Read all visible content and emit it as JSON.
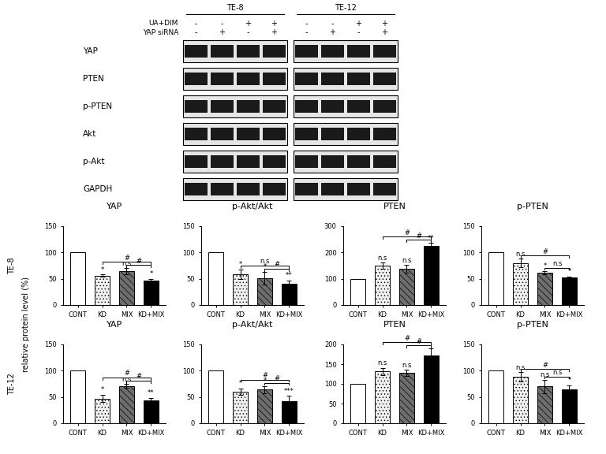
{
  "figure": {
    "y_label": "relative protein level (%)",
    "rows": [
      "TE-8",
      "TE-12"
    ]
  },
  "blot": {
    "columns": [
      "TE-8",
      "TE-12"
    ],
    "treatments": [
      {
        "label": "UA+DIM",
        "signs": [
          "-",
          "-",
          "+",
          "+"
        ]
      },
      {
        "label": "YAP siRNA",
        "signs": [
          "-",
          "+",
          "-",
          "+"
        ]
      }
    ],
    "proteins": [
      "YAP",
      "PTEN",
      "p-PTEN",
      "Akt",
      "p-Akt",
      "GAPDH"
    ]
  },
  "chart_data": [
    {
      "type": "bar",
      "title": "YAP",
      "group": "TE-8",
      "categories": [
        "CONT",
        "KD",
        "MIX",
        "KD+MIX"
      ],
      "values": [
        100,
        56,
        64,
        46
      ],
      "errors": [
        null,
        2,
        6,
        4
      ],
      "annotations": [
        null,
        "*",
        "n.s",
        "*"
      ],
      "comparisons": [
        {
          "from": "KD",
          "to": "KD+MIX",
          "label": "#"
        },
        {
          "from": "MIX",
          "to": "KD+MIX",
          "label": "#"
        }
      ],
      "colors": [
        "#ffffff",
        "#f0f0f0",
        "#6e6e6e",
        "#000000"
      ],
      "ylim": [
        0,
        150
      ],
      "yticks": [
        0,
        50,
        100,
        150
      ]
    },
    {
      "type": "bar",
      "title": "p-Akt/Akt",
      "group": "TE-8",
      "categories": [
        "CONT",
        "KD",
        "MIX",
        "KD+MIX"
      ],
      "values": [
        100,
        59,
        51,
        40
      ],
      "errors": [
        null,
        9,
        12,
        7
      ],
      "annotations": [
        null,
        "*",
        "*",
        "**"
      ],
      "comparisons": [
        {
          "from": "KD",
          "to": "KD+MIX",
          "label": "n.s"
        },
        {
          "from": "MIX",
          "to": "KD+MIX",
          "label": "#"
        }
      ],
      "colors": [
        "#ffffff",
        "#f0f0f0",
        "#6e6e6e",
        "#000000"
      ],
      "ylim": [
        0,
        150
      ],
      "yticks": [
        0,
        50,
        100,
        150
      ]
    },
    {
      "type": "bar",
      "title": "PTEN",
      "group": "TE-8",
      "categories": [
        "CONT",
        "KD",
        "MIX",
        "KD+MIX"
      ],
      "values": [
        100,
        150,
        138,
        225
      ],
      "errors": [
        null,
        12,
        14,
        12
      ],
      "annotations": [
        null,
        "n.s",
        "n.s",
        "**"
      ],
      "comparisons": [
        {
          "from": "KD",
          "to": "KD+MIX",
          "label": "#"
        },
        {
          "from": "MIX",
          "to": "KD+MIX",
          "label": "#"
        }
      ],
      "colors": [
        "#ffffff",
        "#f0f0f0",
        "#6e6e6e",
        "#000000"
      ],
      "ylim": [
        0,
        300
      ],
      "yticks": [
        0,
        100,
        200,
        300
      ]
    },
    {
      "type": "bar",
      "title": "p-PTEN",
      "group": "TE-8",
      "categories": [
        "CONT",
        "KD",
        "MIX",
        "KD+MIX"
      ],
      "values": [
        100,
        80,
        62,
        52
      ],
      "errors": [
        null,
        8,
        3,
        2
      ],
      "annotations": [
        null,
        "n.s",
        "*",
        "*"
      ],
      "comparisons": [
        {
          "from": "KD",
          "to": "KD+MIX",
          "label": "#"
        },
        {
          "from": "MIX",
          "to": "KD+MIX",
          "label": "n.s"
        }
      ],
      "colors": [
        "#ffffff",
        "#f0f0f0",
        "#6e6e6e",
        "#000000"
      ],
      "ylim": [
        0,
        150
      ],
      "yticks": [
        0,
        50,
        100,
        150
      ]
    },
    {
      "type": "bar",
      "title": "YAP",
      "group": "TE-12",
      "categories": [
        "CONT",
        "KD",
        "MIX",
        "KD+MIX"
      ],
      "values": [
        100,
        47,
        71,
        43
      ],
      "errors": [
        null,
        7,
        4,
        5
      ],
      "annotations": [
        null,
        "*",
        "n.s",
        "**"
      ],
      "comparisons": [
        {
          "from": "KD",
          "to": "KD+MIX",
          "label": "#"
        },
        {
          "from": "MIX",
          "to": "KD+MIX",
          "label": "#"
        }
      ],
      "colors": [
        "#ffffff",
        "#f0f0f0",
        "#6e6e6e",
        "#000000"
      ],
      "ylim": [
        0,
        150
      ],
      "yticks": [
        0,
        50,
        100,
        150
      ]
    },
    {
      "type": "bar",
      "title": "p-Akt/Akt",
      "group": "TE-12",
      "categories": [
        "CONT",
        "KD",
        "MIX",
        "KD+MIX"
      ],
      "values": [
        100,
        60,
        64,
        42
      ],
      "errors": [
        null,
        6,
        7,
        10
      ],
      "annotations": [
        null,
        "*",
        "*",
        "***"
      ],
      "comparisons": [
        {
          "from": "KD",
          "to": "KD+MIX",
          "label": "#"
        },
        {
          "from": "MIX",
          "to": "KD+MIX",
          "label": "#"
        }
      ],
      "colors": [
        "#ffffff",
        "#f0f0f0",
        "#6e6e6e",
        "#000000"
      ],
      "ylim": [
        0,
        150
      ],
      "yticks": [
        0,
        50,
        100,
        150
      ]
    },
    {
      "type": "bar",
      "title": "PTEN",
      "group": "TE-12",
      "categories": [
        "CONT",
        "KD",
        "MIX",
        "KD+MIX"
      ],
      "values": [
        100,
        132,
        128,
        172
      ],
      "errors": [
        null,
        9,
        8,
        18
      ],
      "annotations": [
        null,
        "n.s",
        "n.s",
        null
      ],
      "comparisons": [
        {
          "from": "KD",
          "to": "KD+MIX",
          "label": "#"
        },
        {
          "from": "MIX",
          "to": "KD+MIX",
          "label": "#"
        }
      ],
      "colors": [
        "#ffffff",
        "#f0f0f0",
        "#6e6e6e",
        "#000000"
      ],
      "ylim": [
        0,
        200
      ],
      "yticks": [
        0,
        50,
        100,
        150,
        200
      ]
    },
    {
      "type": "bar",
      "title": "p-PTEN",
      "group": "TE-12",
      "categories": [
        "CONT",
        "KD",
        "MIX",
        "KD+MIX"
      ],
      "values": [
        100,
        88,
        70,
        65
      ],
      "errors": [
        null,
        9,
        13,
        7
      ],
      "annotations": [
        null,
        "n.s",
        "n.s",
        "*"
      ],
      "comparisons": [
        {
          "from": "KD",
          "to": "KD+MIX",
          "label": "#"
        },
        {
          "from": "MIX",
          "to": "KD+MIX",
          "label": "n.s"
        }
      ],
      "colors": [
        "#ffffff",
        "#f0f0f0",
        "#6e6e6e",
        "#000000"
      ],
      "ylim": [
        0,
        150
      ],
      "yticks": [
        0,
        50,
        100,
        150
      ]
    }
  ]
}
